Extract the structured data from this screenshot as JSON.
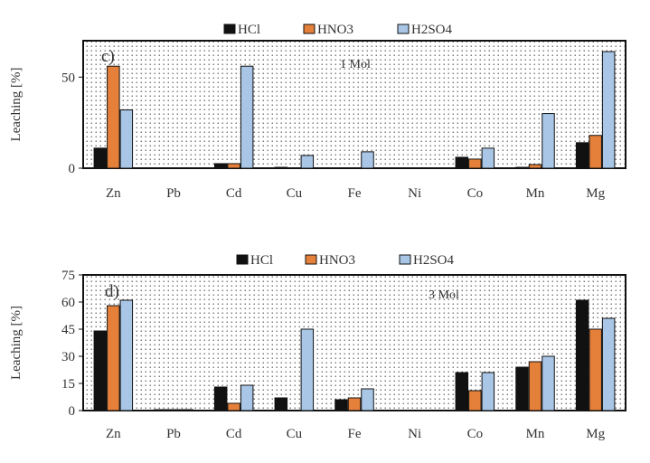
{
  "chart_data": [
    {
      "type": "bar",
      "panel_label": "c)",
      "annotation": "1 Mol",
      "ylabel": "Leaching [%]",
      "categories": [
        "Zn",
        "Pb",
        "Cd",
        "Cu",
        "Fe",
        "Ni",
        "Co",
        "Mn",
        "Mg"
      ],
      "ylim": [
        0,
        70
      ],
      "yticks": [
        "0",
        "50"
      ],
      "ytick_values": [
        0,
        50
      ],
      "legend_position": "top",
      "series": [
        {
          "name": "HCl",
          "color": "#111111",
          "values": [
            11,
            0,
            2.5,
            0.5,
            0,
            0,
            6,
            0.5,
            14
          ]
        },
        {
          "name": "HNO3",
          "color": "#e5803a",
          "values": [
            56,
            0,
            2.5,
            0,
            0,
            0,
            5,
            2,
            18
          ]
        },
        {
          "name": "H2SO4",
          "color": "#a9c6e6",
          "values": [
            32,
            0,
            56,
            7,
            9,
            0,
            11,
            30,
            64
          ]
        }
      ]
    },
    {
      "type": "bar",
      "panel_label": "d)",
      "annotation": "3 Mol",
      "ylabel": "Leaching [%]",
      "categories": [
        "Zn",
        "Pb",
        "Cd",
        "Cu",
        "Fe",
        "Ni",
        "Co",
        "Mn",
        "Mg"
      ],
      "ylim": [
        0,
        75
      ],
      "yticks": [
        "0",
        "15",
        "30",
        "45",
        "60",
        "75"
      ],
      "ytick_values": [
        0,
        15,
        30,
        45,
        60,
        75
      ],
      "legend_position": "top",
      "series": [
        {
          "name": "HCl",
          "color": "#111111",
          "values": [
            44,
            0.5,
            13,
            7,
            6,
            0,
            21,
            24,
            61
          ]
        },
        {
          "name": "HNO3",
          "color": "#e5803a",
          "values": [
            58,
            0.5,
            4,
            0,
            7,
            0,
            11,
            27,
            45
          ]
        },
        {
          "name": "H2SO4",
          "color": "#a9c6e6",
          "values": [
            61,
            0.5,
            14,
            45,
            12,
            0,
            21,
            30,
            51
          ]
        }
      ]
    }
  ]
}
